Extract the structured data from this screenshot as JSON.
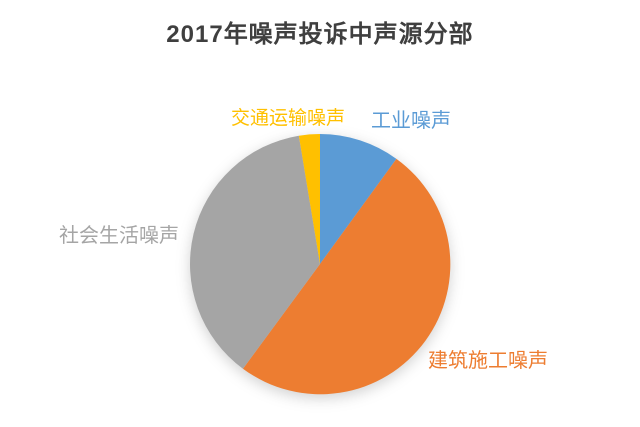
{
  "chart_data": {
    "type": "pie",
    "title": "2017年噪声投诉中声源分部",
    "title_color": "#3F3F3F",
    "background_color": "#FFFFFF",
    "legend_position": "none",
    "labels_outside": true,
    "start_angle_deg": 0,
    "direction": "clockwise",
    "slices": [
      {
        "label": "工业噪声",
        "percent": 10.0,
        "angle_deg": 36.0,
        "color": "#5B9BD5"
      },
      {
        "label": "建筑施工噪声",
        "percent": 50.1,
        "angle_deg": 180.4,
        "color": "#ED7D31"
      },
      {
        "label": "社会生活噪声",
        "percent": 37.3,
        "angle_deg": 134.3,
        "color": "#A5A5A5"
      },
      {
        "label": "交通运输噪声",
        "percent": 2.6,
        "angle_deg": 9.3,
        "color": "#FFC000"
      }
    ]
  }
}
